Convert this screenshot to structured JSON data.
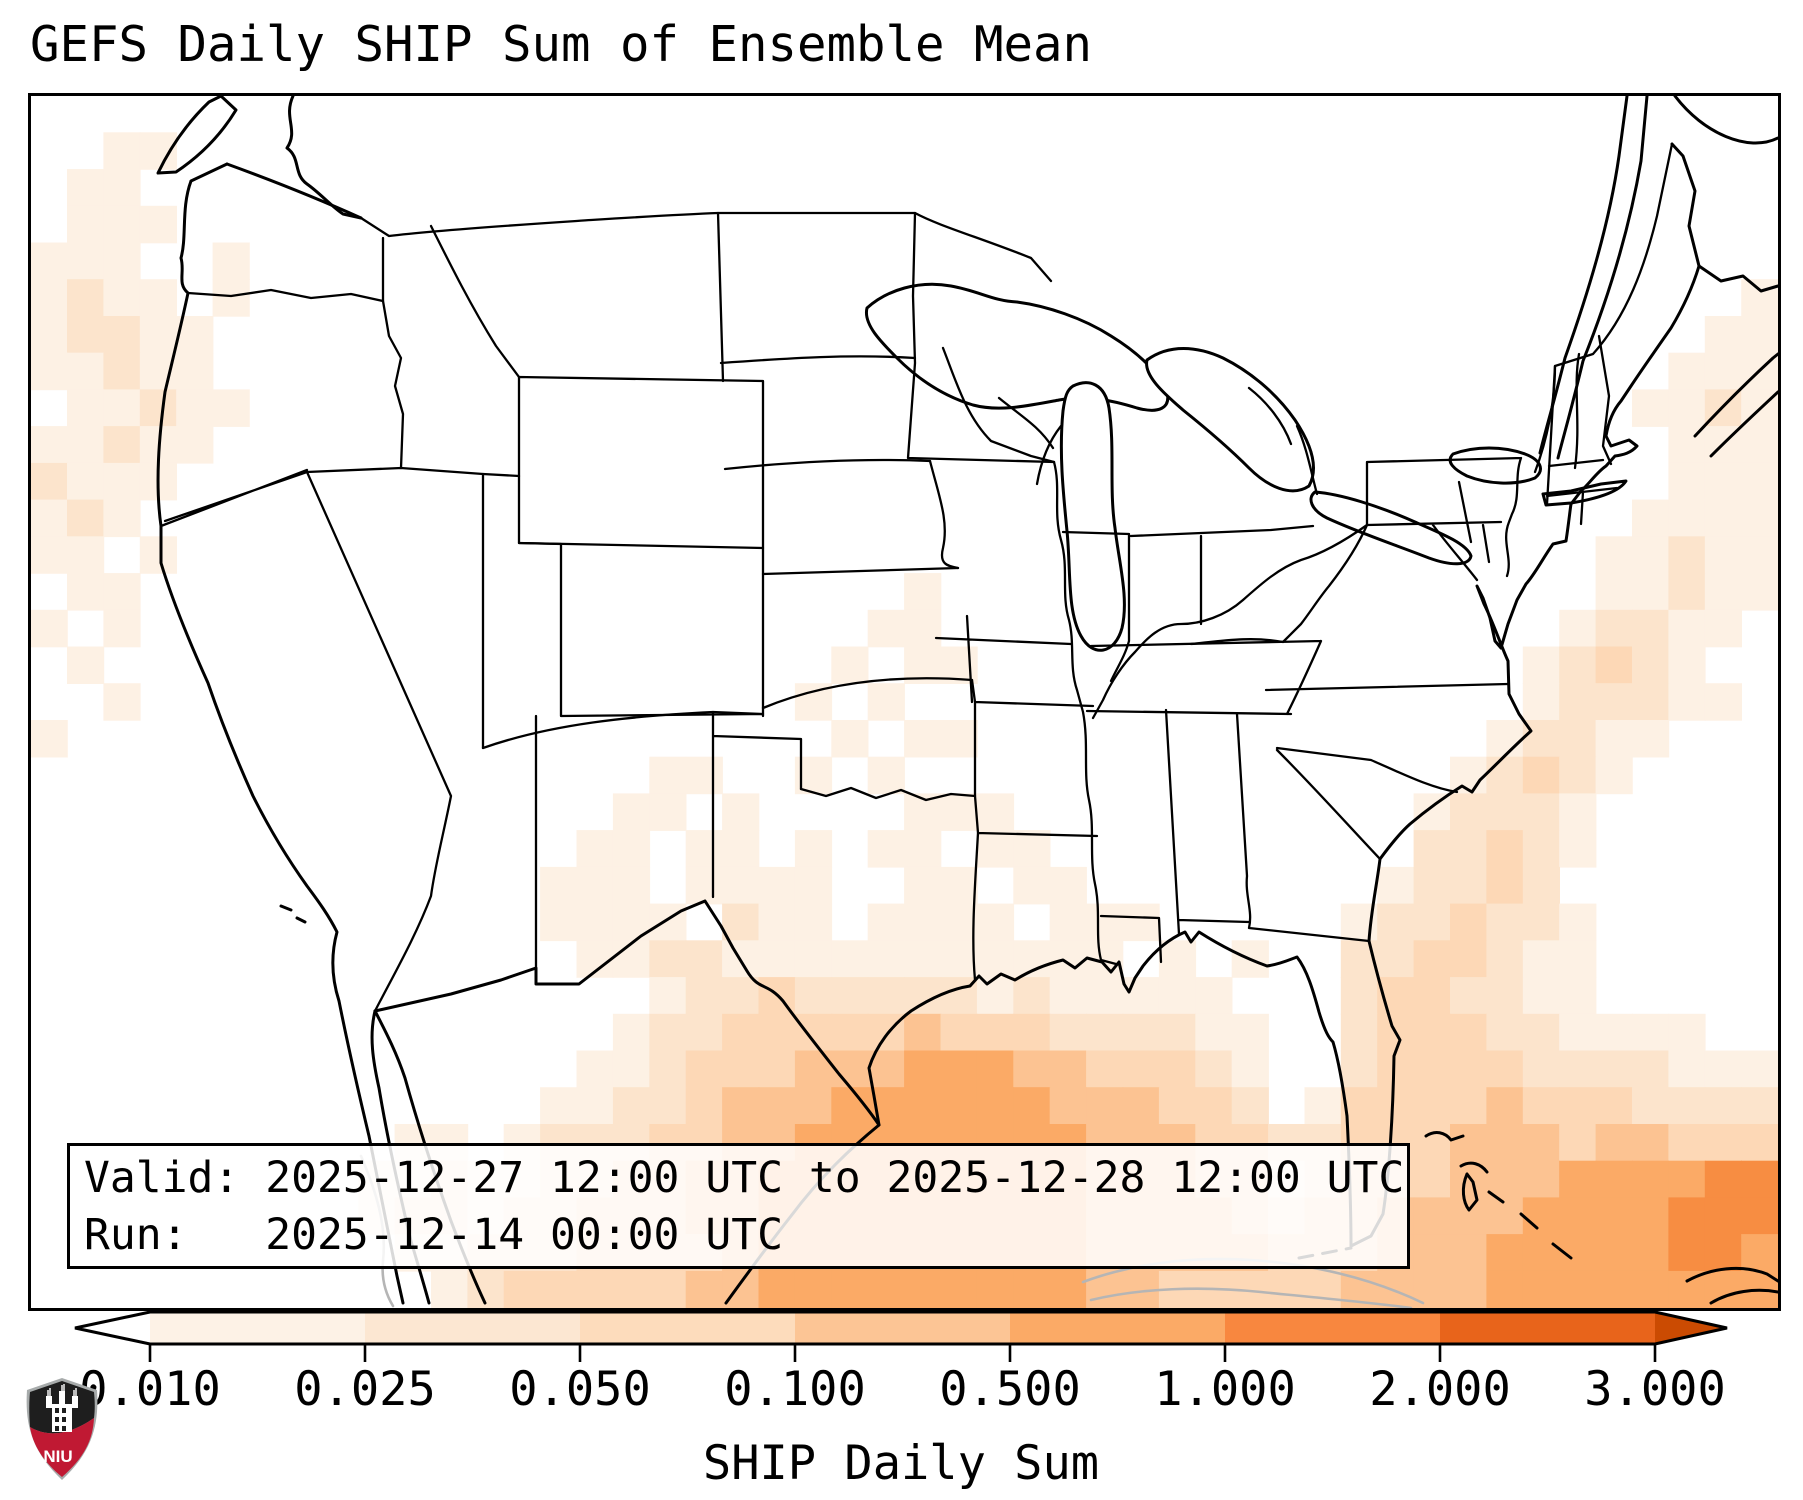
{
  "title": "GEFS Daily SHIP Sum of Ensemble Mean",
  "info_box": {
    "line1": "Valid: 2025-12-27 12:00 UTC to 2025-12-28 12:00 UTC",
    "line2": "Run:   2025-12-14 00:00 UTC"
  },
  "logo": {
    "text": "NIU",
    "shield_black": "#1e1e1e",
    "shield_red": "#c01933",
    "shield_trim": "#a7abab"
  },
  "chart_data": {
    "type": "heatmap",
    "title": "GEFS Daily SHIP Sum of Ensemble Mean",
    "valid": "2025-12-27 12:00 UTC to 2025-12-28 12:00 UTC",
    "run": "2025-12-14 00:00 UTC",
    "colorbar": {
      "label": "SHIP Daily Sum",
      "orientation": "horizontal",
      "extend": "both",
      "tick_labels": [
        "0.010",
        "0.025",
        "0.050",
        "0.100",
        "0.500",
        "1.000",
        "2.000",
        "3.000"
      ],
      "boundaries": [
        0.01,
        0.025,
        0.05,
        0.1,
        0.5,
        1.0,
        2.0,
        3.0
      ],
      "segment_colors": [
        "#fdf2e6",
        "#fce7d2",
        "#fddcbc",
        "#fcc595",
        "#fbaa66",
        "#f8873f",
        "#e8641b"
      ],
      "under_color": "#ffffff",
      "over_color": "#cb4b02"
    },
    "grid": {
      "comment": "Estimated SHIP daily-sum field on a 48x33 cell grid over the map, level index per cell; 0=no shading, levels 1-6 map to the value bands below",
      "level_colors": {
        "1": "#fdf1e4",
        "2": "#fce4cc",
        "3": "#fdd8b6",
        "4": "#fcc392",
        "5": "#fbaa66",
        "6": "#f78d42"
      },
      "level_value_bands": [
        "0.010-0.025",
        "0.025-0.050",
        "0.050-0.100",
        "0.100-0.500",
        "0.500-1.000",
        "1.000-2.000"
      ],
      "cols": 48,
      "rows": 33,
      "cells": [
        "000000000000000000000000000000000000000000000000",
        "001100000000000000000000000000000000000000000000",
        "011000000000000000000000000000000000000000000000",
        "011100000000000000000000000000000000000000000000",
        "111001000000000000000000000000000000000000000000",
        "121101000000000000000000000000000000000000000001",
        "122110000000000000000000000000000000000000000011",
        "112110000000000000000000000000000000000000000111",
        "011211000000000000000000000000000000000000001121",
        "112110000000000000000000000000000000000000000111",
        "211100000000000000000000000000000000000000000111",
        "121000000000000000000000000000000000000000001111",
        "110100000000000000000000000000000000000000011211",
        "011000000000000000000000100000000000000000011211",
        "101000000000000000000001100000000000000000122110",
        "010000000000000000000010110000000000000001232100",
        "001000000000000000000101000000000000000001222110",
        "100000000000000000000010110000000000000012211000",
        "000000000000000001100101000000000000000123210000",
        "000000000000000011010000111000000000001222100000",
        "000000000000000110110101101100000000002232100000",
        "000000000000001110111100110110000000012232000000",
        "000000000000001111021101111011100000122322100000",
        "000000000000000112211111111111010100223321100000",
        "000000000000000001223222221211111000233221100000",
        "000000000000000012233333433322221100233322111100",
        "000000000000000112333444555443332100233332222111",
        "000000000000001122344455555544433201333343332222",
        "000000000011012223344555555554443322333444344333",
        "000000000112112233445555555554443312333444555566",
        "000000000122122333445555555554444323344445555666",
        "000000000011222333345555555554444433344455555665",
        "000000000001233333445555555554433333444455555555"
      ]
    }
  }
}
